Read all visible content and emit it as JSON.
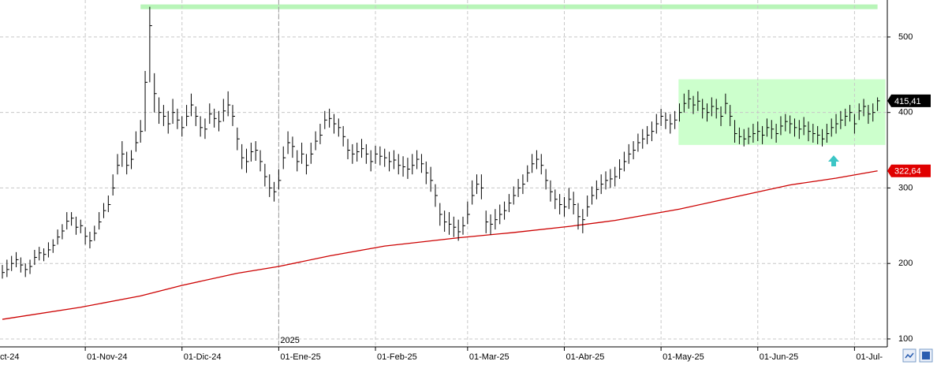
{
  "chart_data": {
    "type": "hlc",
    "categories": [
      "ct-24",
      null,
      null,
      null,
      null,
      null,
      null,
      null,
      null,
      null,
      null,
      null,
      null,
      null,
      null,
      null,
      null,
      null,
      "01-Nov-24",
      null,
      null,
      null,
      null,
      null,
      null,
      null,
      null,
      null,
      null,
      null,
      null,
      null,
      null,
      null,
      null,
      null,
      null,
      null,
      null,
      "01-Dic-24",
      null,
      null,
      null,
      null,
      null,
      null,
      null,
      null,
      null,
      null,
      null,
      null,
      null,
      null,
      null,
      null,
      null,
      null,
      null,
      null,
      "01-Ene-25",
      null,
      null,
      null,
      null,
      null,
      null,
      null,
      null,
      null,
      null,
      null,
      null,
      null,
      null,
      null,
      null,
      null,
      null,
      null,
      null,
      "01-Feb-25",
      null,
      null,
      null,
      null,
      null,
      null,
      null,
      null,
      null,
      null,
      null,
      null,
      null,
      null,
      null,
      null,
      null,
      null,
      null,
      "01-Mar-25",
      null,
      null,
      null,
      null,
      null,
      null,
      null,
      null,
      null,
      null,
      null,
      null,
      null,
      null,
      null,
      null,
      null,
      null,
      null,
      null,
      "01-Abr-25",
      null,
      null,
      null,
      null,
      null,
      null,
      null,
      null,
      null,
      null,
      null,
      null,
      null,
      null,
      null,
      null,
      null,
      null,
      null,
      null,
      "01-May-25",
      null,
      null,
      null,
      null,
      null,
      null,
      null,
      null,
      null,
      null,
      null,
      null,
      null,
      null,
      null,
      null,
      null,
      null,
      null,
      null,
      "01-Jun-25",
      null,
      null,
      null,
      null,
      null,
      null,
      null,
      null,
      null,
      null,
      null,
      null,
      null,
      null,
      null,
      null,
      null,
      null,
      null,
      null,
      "01-Jul-",
      null,
      null,
      null,
      null,
      null
    ],
    "high": [
      198,
      205,
      210,
      215,
      208,
      200,
      205,
      218,
      222,
      220,
      228,
      232,
      245,
      252,
      268,
      268,
      262,
      258,
      248,
      242,
      250,
      268,
      280,
      290,
      318,
      345,
      362,
      348,
      350,
      375,
      390,
      455,
      540,
      452,
      420,
      410,
      402,
      418,
      405,
      395,
      410,
      425,
      408,
      395,
      392,
      412,
      405,
      402,
      418,
      428,
      410,
      380,
      358,
      352,
      360,
      362,
      350,
      332,
      318,
      308,
      325,
      355,
      375,
      368,
      350,
      360,
      345,
      360,
      375,
      385,
      402,
      405,
      398,
      392,
      382,
      365,
      358,
      360,
      365,
      358,
      350,
      356,
      355,
      352,
      348,
      350,
      345,
      342,
      340,
      345,
      350,
      345,
      335,
      328,
      305,
      280,
      270,
      268,
      262,
      258,
      262,
      282,
      310,
      318,
      318,
      270,
      265,
      272,
      278,
      282,
      292,
      302,
      312,
      318,
      330,
      345,
      350,
      345,
      325,
      310,
      298,
      292,
      288,
      300,
      295,
      280,
      272,
      290,
      302,
      310,
      318,
      322,
      325,
      328,
      338,
      348,
      358,
      362,
      372,
      378,
      382,
      388,
      398,
      405,
      400,
      398,
      402,
      412,
      425,
      430,
      422,
      428,
      418,
      412,
      420,
      418,
      408,
      425,
      410,
      390,
      380,
      378,
      380,
      385,
      388,
      382,
      392,
      390,
      385,
      395,
      398,
      396,
      392,
      390,
      394,
      388,
      385,
      382,
      378,
      385,
      392,
      398,
      402,
      405,
      410,
      398,
      412,
      418,
      410,
      412,
      420
    ],
    "low": [
      180,
      182,
      190,
      195,
      188,
      182,
      186,
      198,
      204,
      203,
      208,
      214,
      225,
      232,
      245,
      250,
      238,
      240,
      225,
      220,
      230,
      245,
      260,
      268,
      290,
      318,
      328,
      318,
      325,
      348,
      360,
      375,
      440,
      400,
      385,
      382,
      372,
      385,
      378,
      368,
      382,
      395,
      382,
      368,
      365,
      385,
      380,
      375,
      388,
      395,
      382,
      350,
      325,
      320,
      335,
      336,
      322,
      302,
      288,
      282,
      298,
      325,
      345,
      340,
      322,
      332,
      318,
      332,
      350,
      358,
      378,
      380,
      372,
      368,
      355,
      338,
      332,
      335,
      340,
      332,
      322,
      332,
      330,
      328,
      322,
      325,
      318,
      315,
      312,
      318,
      325,
      320,
      305,
      295,
      275,
      250,
      242,
      238,
      235,
      230,
      238,
      252,
      278,
      292,
      285,
      240,
      238,
      245,
      252,
      258,
      268,
      278,
      288,
      292,
      308,
      320,
      325,
      318,
      298,
      282,
      272,
      265,
      262,
      272,
      265,
      245,
      240,
      262,
      278,
      285,
      292,
      298,
      300,
      302,
      312,
      322,
      332,
      338,
      348,
      352,
      358,
      362,
      372,
      382,
      378,
      372,
      378,
      388,
      400,
      405,
      398,
      402,
      392,
      388,
      395,
      392,
      382,
      398,
      382,
      360,
      358,
      355,
      358,
      360,
      362,
      358,
      368,
      365,
      360,
      370,
      375,
      372,
      368,
      365,
      370,
      362,
      360,
      358,
      355,
      360,
      368,
      372,
      378,
      382,
      388,
      372,
      390,
      395,
      385,
      388,
      402
    ],
    "close": [
      188,
      192,
      200,
      205,
      198,
      192,
      196,
      208,
      214,
      212,
      218,
      224,
      235,
      243,
      256,
      260,
      248,
      250,
      236,
      230,
      240,
      255,
      270,
      278,
      300,
      330,
      345,
      330,
      338,
      360,
      375,
      440,
      515,
      425,
      400,
      395,
      385,
      400,
      390,
      380,
      395,
      410,
      395,
      380,
      378,
      398,
      392,
      388,
      402,
      410,
      395,
      365,
      340,
      335,
      348,
      350,
      335,
      315,
      300,
      295,
      310,
      340,
      360,
      355,
      335,
      345,
      330,
      345,
      362,
      370,
      390,
      392,
      385,
      380,
      368,
      350,
      345,
      348,
      352,
      345,
      335,
      345,
      342,
      340,
      335,
      337,
      330,
      328,
      325,
      330,
      338,
      332,
      320,
      310,
      290,
      265,
      255,
      252,
      248,
      242,
      250,
      265,
      290,
      305,
      300,
      255,
      252,
      258,
      265,
      270,
      280,
      290,
      300,
      305,
      320,
      332,
      338,
      330,
      310,
      295,
      285,
      278,
      275,
      285,
      278,
      262,
      258,
      275,
      290,
      298,
      305,
      310,
      312,
      315,
      325,
      335,
      345,
      350,
      360,
      365,
      370,
      375,
      385,
      395,
      390,
      385,
      390,
      400,
      412,
      418,
      410,
      415,
      405,
      400,
      408,
      405,
      395,
      412,
      395,
      372,
      368,
      365,
      368,
      372,
      375,
      370,
      380,
      378,
      372,
      382,
      388,
      385,
      380,
      378,
      382,
      375,
      372,
      370,
      365,
      372,
      380,
      385,
      390,
      395,
      400,
      385,
      402,
      408,
      398,
      400,
      415.41
    ],
    "color": "#000000",
    "ylim": [
      89.5,
      549
    ],
    "yticks": [
      100,
      200,
      300,
      400,
      500
    ],
    "grid": true,
    "year_label": "2025",
    "moving_average": {
      "color": "#cc0000",
      "index": [
        0,
        17,
        30,
        39,
        51,
        60,
        71,
        83,
        99,
        111,
        123,
        133,
        147,
        159,
        171,
        181,
        190
      ],
      "values": [
        126,
        142,
        157,
        171,
        187,
        196,
        210,
        223,
        234,
        241,
        249,
        257,
        272,
        288,
        304,
        313,
        322.64
      ]
    },
    "resistance": {
      "value": 540,
      "color": "#b8f5b8"
    },
    "zone": {
      "low": 357,
      "high": 444,
      "color": "#ccffcc"
    },
    "price_markers": [
      {
        "value": 415.41,
        "label": "415,41",
        "color": "#000000"
      },
      {
        "value": 322.64,
        "label": "322,64",
        "color": "#e00000"
      }
    ]
  }
}
